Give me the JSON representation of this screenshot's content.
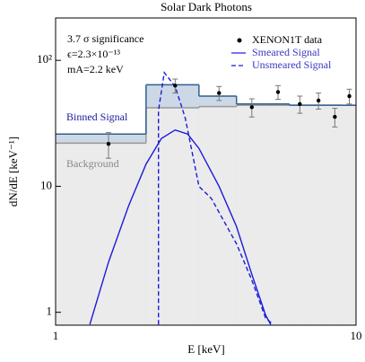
{
  "chart_data": {
    "type": "line",
    "title": "Solar Dark Photons",
    "x_label": "E [keV]",
    "y_label": "dN/dE [keV⁻¹]",
    "log_x": true,
    "log_y": true,
    "xlim": [
      1,
      10
    ],
    "ylim": [
      0.79,
      217
    ],
    "xticks": [
      1,
      10
    ],
    "yticks": [
      1,
      10,
      {
        "value": 100,
        "label": "10²"
      }
    ],
    "annotations": [
      "3.7 σ significance",
      "ϵ=2.3×10⁻¹³",
      "mA=2.2 keV"
    ],
    "bins": [
      1,
      2,
      3,
      4,
      5,
      6,
      7,
      8,
      9,
      10
    ],
    "binned_signal": {
      "name": "Binned Signal",
      "color": "#2f5f8f",
      "fill": "#cdd8e6",
      "values": [
        26,
        64,
        52,
        45,
        45,
        44,
        44,
        44,
        44
      ]
    },
    "background": {
      "name": "Background",
      "color": "#999999",
      "fill": "#ebebeb",
      "values": [
        22,
        42,
        43,
        44,
        44,
        44,
        44,
        44,
        44
      ]
    },
    "data_points": {
      "name": "XENON1T data",
      "color": "#000000",
      "x": [
        1.5,
        2.5,
        3.5,
        4.5,
        5.5,
        6.5,
        7.5,
        8.5,
        9.5
      ],
      "values": [
        21.7,
        63,
        55,
        42.5,
        56,
        45,
        48,
        35.6,
        52
      ],
      "errors": [
        5,
        8,
        7,
        7,
        7,
        7,
        7,
        6,
        7
      ]
    },
    "series": [
      {
        "name": "Smeared Signal",
        "color": "#1a1adc",
        "dash": false,
        "x": [
          1.3,
          1.5,
          1.75,
          2,
          2.25,
          2.5,
          2.75,
          3,
          3.5,
          4,
          4.5,
          5,
          5.2
        ],
        "values": [
          0.8,
          2.5,
          7,
          15,
          24,
          28,
          26,
          20,
          10,
          4.8,
          2,
          0.95,
          0.8
        ]
      },
      {
        "name": "Unsmeared Signal",
        "color": "#1a1adc",
        "dash": true,
        "x": [
          2.2,
          2.2,
          2.3,
          2.5,
          2.7,
          2.9,
          3,
          3.3,
          3.6,
          4,
          4.5,
          5,
          5.3
        ],
        "values": [
          0.8,
          40,
          80,
          62,
          35,
          15,
          10,
          8,
          5.5,
          3.5,
          1.8,
          0.9,
          0.8
        ]
      }
    ]
  }
}
